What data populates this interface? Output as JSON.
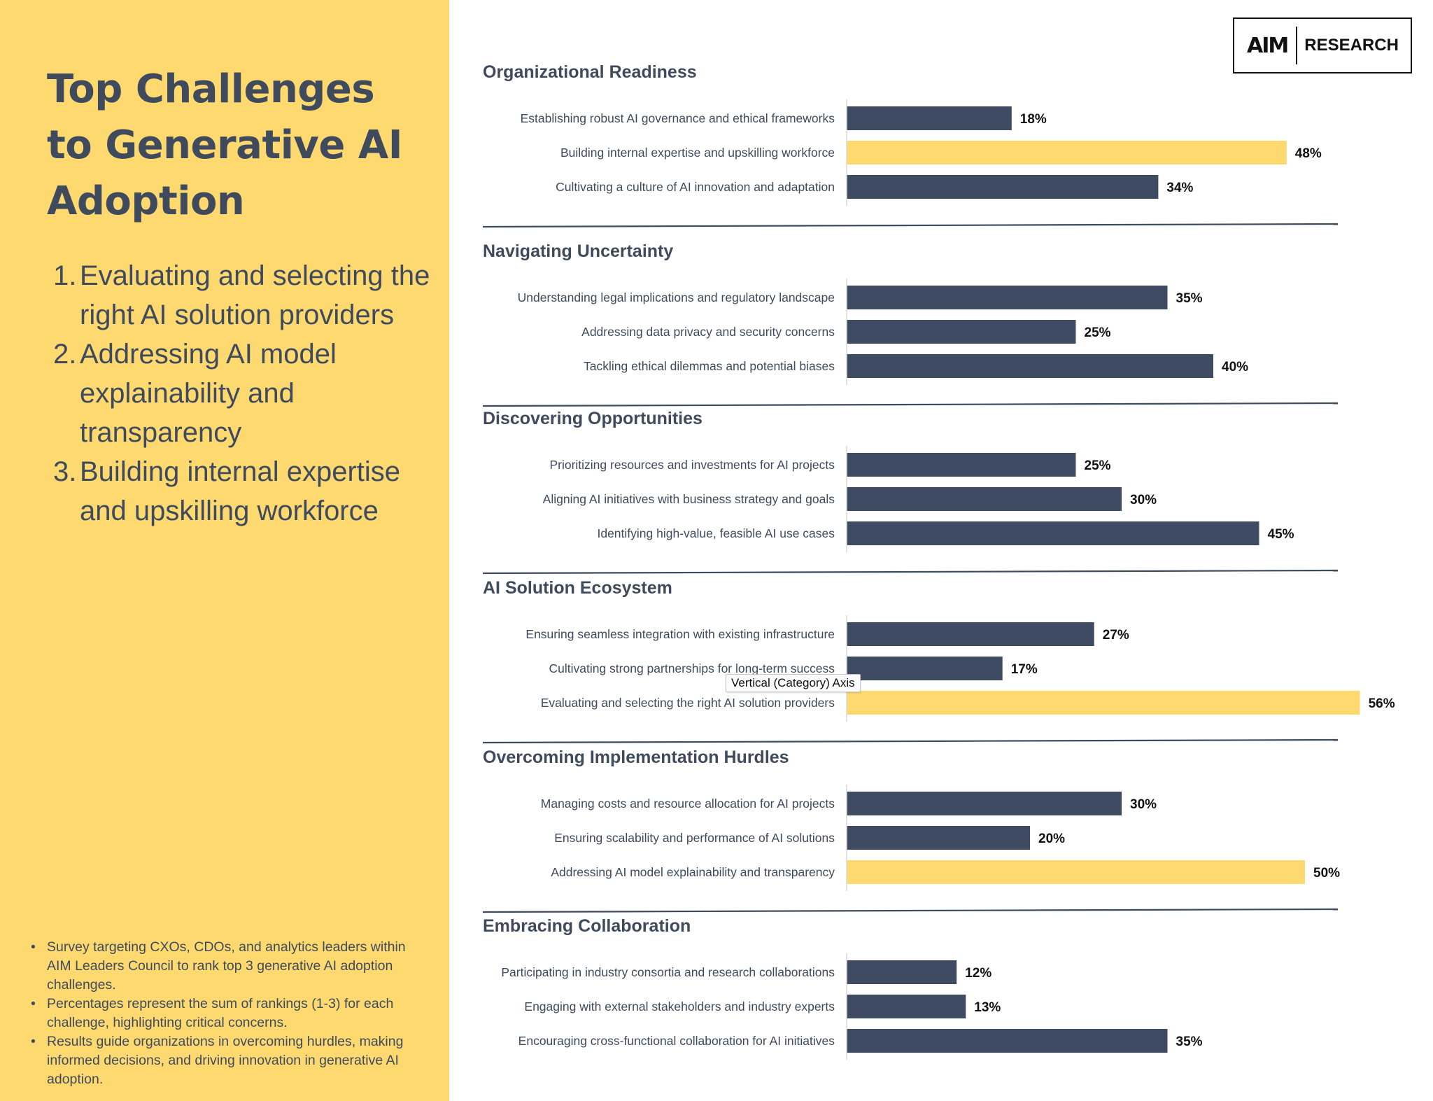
{
  "left_panel": {
    "title_lines": [
      "Top Challenges",
      "to Generative AI",
      "Adoption"
    ],
    "top_challenges": [
      {
        "num": "1.",
        "text": "Evaluating and selecting the right AI solution providers"
      },
      {
        "num": "2.",
        "text": "Addressing AI model explainability and transparency"
      },
      {
        "num": "3.",
        "text": "Building internal expertise and upskilling workforce"
      }
    ],
    "notes": [
      "Survey targeting CXOs, CDOs, and analytics leaders within AIM Leaders Council to rank top 3 generative AI adoption challenges.",
      "Percentages represent the sum of rankings (1-3) for each challenge, highlighting critical concerns.",
      "Results guide organizations in overcoming hurdles, making informed decisions, and driving innovation in generative AI adoption."
    ],
    "bullet": "•"
  },
  "logo": {
    "mark": "AIM",
    "text": "RESEARCH"
  },
  "tooltip": "Vertical (Category) Axis",
  "colors": {
    "bar": "#3f4b63",
    "highlight": "#fdd96f",
    "text": "#3f4a5c",
    "panel": "#fdd96f"
  },
  "chart_data": {
    "type": "bar",
    "orientation": "horizontal",
    "unit": "%",
    "xlim": [
      0,
      100
    ],
    "sections": [
      {
        "title": "Organizational Readiness",
        "categories": [
          "Establishing robust AI governance and ethical frameworks",
          "Building internal expertise and upskilling workforce",
          "Cultivating a culture of AI innovation and adaptation"
        ],
        "values": [
          18,
          48,
          34
        ],
        "labels": [
          "18%",
          "48%",
          "34%"
        ],
        "highlight": [
          false,
          true,
          false
        ]
      },
      {
        "title": "Navigating Uncertainty",
        "categories": [
          "Understanding legal implications and regulatory landscape",
          "Addressing data privacy and security concerns",
          "Tackling ethical dilemmas and potential biases"
        ],
        "values": [
          35,
          25,
          40
        ],
        "labels": [
          "35%",
          "25%",
          "40%"
        ],
        "highlight": [
          false,
          false,
          false
        ]
      },
      {
        "title": "Discovering Opportunities",
        "categories": [
          "Prioritizing resources and investments for AI projects",
          "Aligning AI initiatives with business strategy and goals",
          "Identifying high-value, feasible AI use cases"
        ],
        "values": [
          25,
          30,
          45
        ],
        "labels": [
          "25%",
          "30%",
          "45%"
        ],
        "highlight": [
          false,
          false,
          false
        ]
      },
      {
        "title": "AI Solution Ecosystem",
        "categories": [
          "Ensuring seamless integration with existing infrastructure",
          "Cultivating strong partnerships for long-term success",
          "Evaluating and selecting the right AI solution providers"
        ],
        "values": [
          27,
          17,
          56
        ],
        "labels": [
          "27%",
          "17%",
          "56%"
        ],
        "highlight": [
          false,
          false,
          true
        ]
      },
      {
        "title": "Overcoming Implementation Hurdles",
        "categories": [
          "Managing costs and resource allocation for AI projects",
          "Ensuring scalability and performance of AI solutions",
          "Addressing AI model explainability and transparency"
        ],
        "values": [
          30,
          20,
          50
        ],
        "labels": [
          "30%",
          "20%",
          "50%"
        ],
        "highlight": [
          false,
          false,
          true
        ]
      },
      {
        "title": "Embracing Collaboration",
        "categories": [
          "Participating in industry consortia and research collaborations",
          "Engaging with external stakeholders and industry experts",
          "Encouraging cross-functional collaboration for AI initiatives"
        ],
        "values": [
          12,
          13,
          35
        ],
        "labels": [
          "12%",
          "13%",
          "35%"
        ],
        "highlight": [
          false,
          false,
          false
        ]
      }
    ]
  }
}
